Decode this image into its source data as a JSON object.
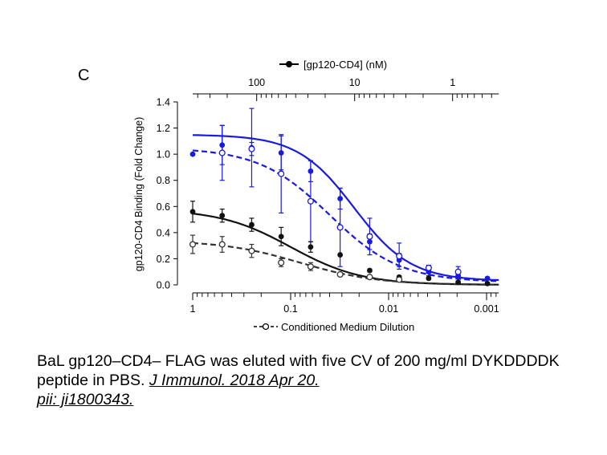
{
  "panel_letter": "C",
  "caption": {
    "text": "BaL gp120–CD4– FLAG was eluted with five CV of 200 mg/ml DYKDDDDK peptide in PBS.",
    "citation_journal": "J Immunol. 2018 Apr 20.",
    "citation_id": "pii: ji1800343."
  },
  "chart_data": {
    "type": "line",
    "title": "",
    "ylabel": "gp120-CD4 Binding (Fold Change)",
    "xlabel": "Conditioned Medium Dilution",
    "x_scale": "log-reversed",
    "xlim": [
      1,
      0.00075
    ],
    "ylim": [
      0,
      1.4
    ],
    "y_ticks": [
      0.0,
      0.2,
      0.4,
      0.6,
      0.8,
      1.0,
      1.2,
      1.4
    ],
    "y_tick_labels": [
      "0.0",
      "0.2",
      "0.4",
      "0.6",
      "0.8",
      "1.0",
      "1.2",
      "1.4"
    ],
    "x_ticks": [
      1,
      0.1,
      0.01,
      0.001
    ],
    "x_tick_labels": [
      "1",
      "0.1",
      "0.01",
      "0.001"
    ],
    "top_axis": {
      "label": "[gp120-CD4] (nM)",
      "ticks": [
        100,
        10,
        1
      ],
      "tick_labels": [
        "100",
        "10",
        "1"
      ],
      "nM_at_dilution_1": 450
    },
    "legend": [
      {
        "label": "[gp120-CD4] (nM)",
        "marker": "filled-circle",
        "line": "solid",
        "placement": "top"
      },
      {
        "label": "Conditioned Medium Dilution",
        "marker": "open-circle",
        "line": "dashed",
        "placement": "bottom"
      }
    ],
    "series": [
      {
        "name": "blue-solid-filled",
        "color": "#1a1adf",
        "marker": "filled",
        "line": "solid",
        "x": [
          1,
          0.5,
          0.25,
          0.125,
          0.0625,
          0.03125,
          0.0156,
          0.0078,
          0.0039,
          0.00195,
          0.00098
        ],
        "y": [
          1.0,
          1.07,
          1.05,
          1.01,
          0.87,
          0.66,
          0.33,
          0.19,
          0.1,
          0.07,
          0.05
        ],
        "err": [
          0.0,
          0.15,
          0.3,
          0.13,
          0.08,
          0.08,
          0.06,
          0.05,
          0.03,
          0.02,
          0.01
        ],
        "fit": {
          "top": 1.15,
          "bottom": 0.03,
          "ic50": 0.0225,
          "hill": 1.5
        }
      },
      {
        "name": "blue-dashed-open",
        "color": "#1a1adf",
        "marker": "open",
        "line": "dashed",
        "x": [
          0.5,
          0.25,
          0.125,
          0.0625,
          0.03125,
          0.0156,
          0.0078,
          0.0039,
          0.00195
        ],
        "y": [
          1.01,
          1.04,
          0.85,
          0.64,
          0.44,
          0.37,
          0.22,
          0.13,
          0.1
        ],
        "err": [
          0.21,
          0.05,
          0.3,
          0.31,
          0.3,
          0.14,
          0.1,
          0.02,
          0.04
        ],
        "fit": {
          "top": 1.05,
          "bottom": 0.02,
          "ic50": 0.04,
          "hill": 1.2
        }
      },
      {
        "name": "black-solid-filled",
        "color": "#111111",
        "marker": "filled",
        "line": "solid",
        "x": [
          1,
          0.5,
          0.25,
          0.125,
          0.0625,
          0.03125,
          0.0156,
          0.0078,
          0.0039,
          0.00195,
          0.00098
        ],
        "y": [
          0.56,
          0.53,
          0.46,
          0.37,
          0.29,
          0.23,
          0.11,
          0.06,
          0.05,
          0.02,
          0.01
        ],
        "err": [
          0.08,
          0.05,
          0.05,
          0.07,
          0.04,
          0.0,
          0.01,
          0.01,
          0.01,
          0.01,
          0.01
        ],
        "fit": {
          "top": 0.58,
          "bottom": 0.0,
          "ic50": 0.1,
          "hill": 1.2
        }
      },
      {
        "name": "black-dashed-open",
        "color": "#333333",
        "marker": "open",
        "line": "dashed",
        "x": [
          1,
          0.5,
          0.25,
          0.125,
          0.0625,
          0.03125,
          0.0156,
          0.0078
        ],
        "y": [
          0.31,
          0.31,
          0.26,
          0.17,
          0.14,
          0.08,
          0.06,
          0.04
        ],
        "err": [
          0.07,
          0.06,
          0.05,
          0.03,
          0.03,
          0.01,
          0.01,
          0.01
        ],
        "fit": {
          "top": 0.34,
          "bottom": 0.0,
          "ic50": 0.08,
          "hill": 1.1
        }
      }
    ]
  }
}
